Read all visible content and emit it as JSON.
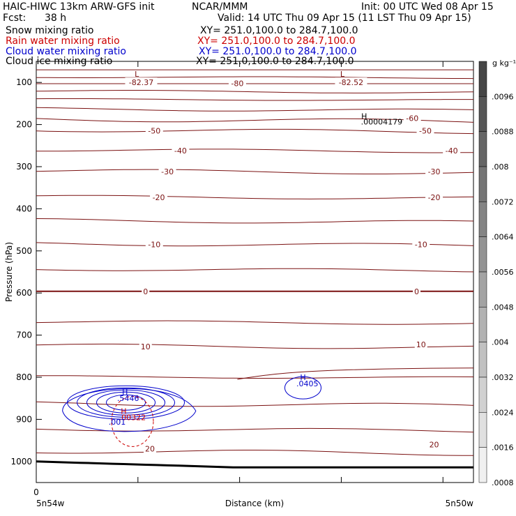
{
  "header": {
    "title_left": "HAIC-HIWC 13km ARW-GFS init",
    "org": "NCAR/MMM",
    "init": "Init: 00 UTC Wed 08 Apr 15",
    "fcst_label": "Fcst:",
    "fcst_value": "38 h",
    "valid": "Valid: 14 UTC Thu 09 Apr 15 (11 LST Thu 09 Apr 15)",
    "fields": [
      {
        "name": "Snow mixing ratio",
        "xy": "XY= 251.0,100.0 to 284.7,100.0",
        "color": "#000000"
      },
      {
        "name": "Rain water mixing ratio",
        "xy": "XY= 251.0,100.0 to 284.7,100.0",
        "color": "#cc0000"
      },
      {
        "name": "Cloud water mixing ratio",
        "xy": "XY= 251.0,100.0 to 284.7,100.0",
        "color": "#0000cc"
      },
      {
        "name": "Cloud ice mixing ratio",
        "xy": "XY= 251.0,100.0 to 284.7,100.0",
        "color": "#000000"
      }
    ]
  },
  "chart_data": {
    "type": "contour",
    "ylabel": "Pressure (hPa)",
    "xlabel": "Distance (km)",
    "x_start_label": "5n54w",
    "x_end_label": "5n50w",
    "x_tick_labels": [
      "0"
    ],
    "y_ticks": [
      100,
      200,
      300,
      400,
      500,
      600,
      700,
      800,
      900,
      1000
    ],
    "ylim": [
      50,
      1050
    ],
    "colorbar": {
      "unit": "g kg⁻¹",
      "labels": [
        ".0096",
        ".0088",
        ".008",
        ".0072",
        ".0064",
        ".0056",
        ".0048",
        ".004",
        ".0032",
        ".0024",
        ".0016",
        ".0008"
      ]
    },
    "temperature_labels": [
      {
        "text": "-82.37",
        "p": 100,
        "x": 0.24
      },
      {
        "text": "-80",
        "p": 102,
        "x": 0.46
      },
      {
        "text": "-82.52",
        "p": 100,
        "x": 0.72
      },
      {
        "text": "-60",
        "p": 185,
        "x": 0.86
      },
      {
        "text": "-50",
        "p": 215,
        "x": 0.27
      },
      {
        "text": "-50",
        "p": 215,
        "x": 0.89
      },
      {
        "text": "-40",
        "p": 262,
        "x": 0.33
      },
      {
        "text": "-40",
        "p": 262,
        "x": 0.95
      },
      {
        "text": "-30",
        "p": 312,
        "x": 0.3
      },
      {
        "text": "-30",
        "p": 312,
        "x": 0.91
      },
      {
        "text": "-20",
        "p": 373,
        "x": 0.28
      },
      {
        "text": "-20",
        "p": 373,
        "x": 0.91
      },
      {
        "text": "-10",
        "p": 485,
        "x": 0.27
      },
      {
        "text": "-10",
        "p": 485,
        "x": 0.88
      },
      {
        "text": "0",
        "p": 596,
        "x": 0.25
      },
      {
        "text": "0",
        "p": 596,
        "x": 0.87
      },
      {
        "text": "10",
        "p": 727,
        "x": 0.25
      },
      {
        "text": "10",
        "p": 722,
        "x": 0.88
      },
      {
        "text": "20",
        "p": 970,
        "x": 0.26
      },
      {
        "text": "20",
        "p": 960,
        "x": 0.91
      }
    ],
    "annotations": [
      {
        "kind": "L",
        "text": "L",
        "p": 80,
        "x": 0.23,
        "color": "#7a1010"
      },
      {
        "kind": "L",
        "text": "L",
        "p": 80,
        "x": 0.7,
        "color": "#7a1010"
      },
      {
        "kind": "H",
        "text": "H",
        "p": 180,
        "x": 0.75,
        "color": "#000000"
      },
      {
        "kind": "value",
        "text": ".00004179",
        "p": 193,
        "x": 0.79,
        "color": "#000000"
      },
      {
        "kind": "H",
        "text": "H",
        "p": 835,
        "x": 0.203,
        "color": "#0000cc"
      },
      {
        "kind": "value",
        "text": ".5446",
        "p": 850,
        "x": 0.21,
        "color": "#0000cc"
      },
      {
        "kind": "H",
        "text": "H",
        "p": 800,
        "x": 0.61,
        "color": "#0000cc"
      },
      {
        "kind": "value",
        "text": ".0405",
        "p": 815,
        "x": 0.62,
        "color": "#0000cc"
      },
      {
        "kind": "H",
        "text": "H",
        "p": 880,
        "x": 0.2,
        "color": "#cc0000"
      },
      {
        "kind": "value",
        "text": ".00322",
        "p": 895,
        "x": 0.22,
        "color": "#cc0000"
      },
      {
        "kind": "value",
        "text": ".001",
        "p": 906,
        "x": 0.185,
        "color": "#0000cc"
      }
    ]
  }
}
